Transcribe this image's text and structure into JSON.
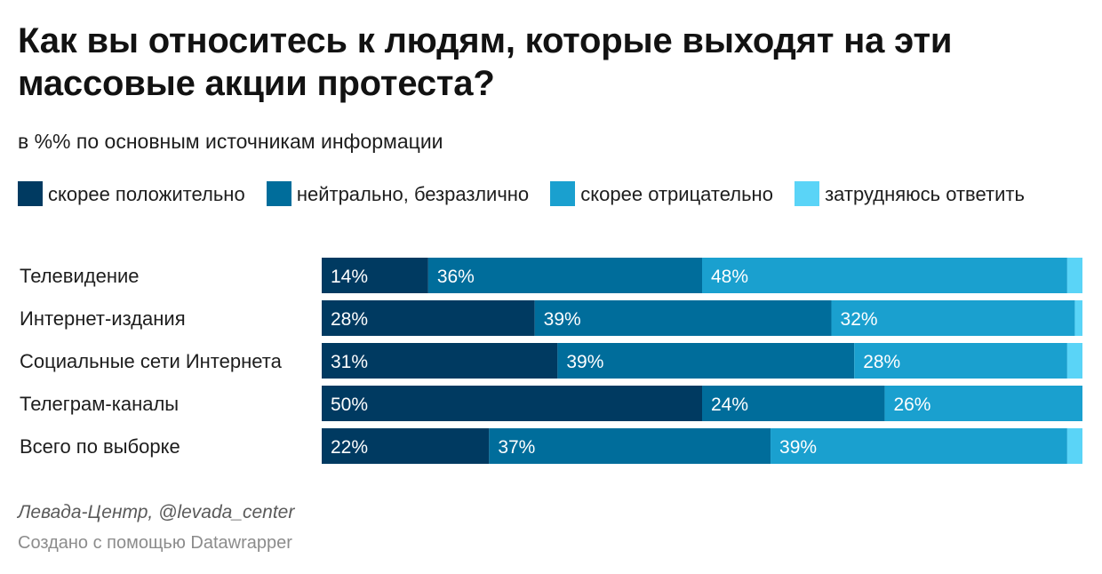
{
  "chart_data": {
    "type": "bar",
    "orientation": "horizontal",
    "stacked": true,
    "title": "Как вы относитесь к людям, которые выходят на эти массовые акции протеста?",
    "subtitle": "в %% по основным источникам информации",
    "xlim": [
      0,
      100
    ],
    "categories": [
      "Телевидение",
      "Интернет-издания",
      "Социальные сети Интернета",
      "Телеграм-каналы",
      "Всего по выборке"
    ],
    "series": [
      {
        "name": "скорее положительно",
        "color": "#003a61",
        "values": [
          14,
          28,
          31,
          50,
          22
        ]
      },
      {
        "name": "нейтрально, безразлично",
        "color": "#006d9b",
        "values": [
          36,
          39,
          39,
          24,
          37
        ]
      },
      {
        "name": "скорее отрицательно",
        "color": "#1aa0cf",
        "values": [
          48,
          32,
          28,
          26,
          39
        ]
      },
      {
        "name": "затрудняюсь ответить",
        "color": "#5ad4f7",
        "values": [
          2,
          1,
          2,
          0,
          2
        ]
      }
    ],
    "label_suffix": "%",
    "labeled_series": 3
  },
  "footer": {
    "source": "Левада-Центр, @levada_center",
    "credit": "Создано с помощью Datawrapper"
  }
}
